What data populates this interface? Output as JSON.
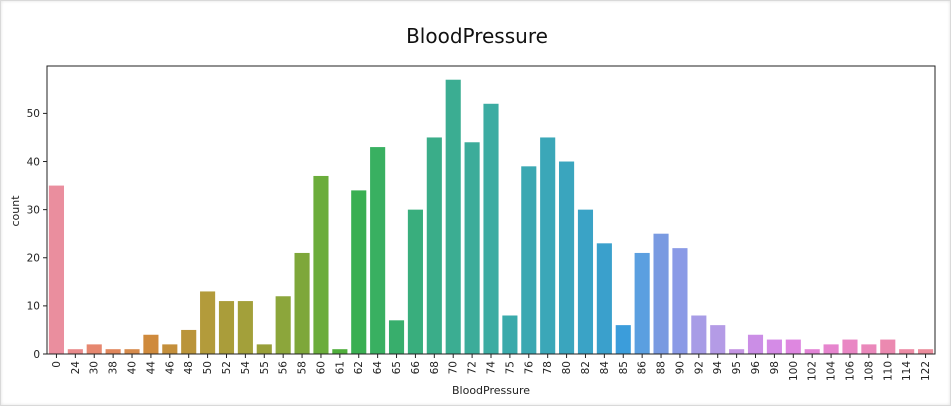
{
  "chart_data": {
    "type": "bar",
    "title": "BloodPressure",
    "xlabel": "BloodPressure",
    "ylabel": "count",
    "ylim": [
      0,
      59.85
    ],
    "yticks": [
      0,
      10,
      20,
      30,
      40,
      50
    ],
    "categories": [
      "0",
      "24",
      "30",
      "38",
      "40",
      "44",
      "46",
      "48",
      "50",
      "52",
      "54",
      "55",
      "56",
      "58",
      "60",
      "61",
      "62",
      "64",
      "65",
      "66",
      "68",
      "70",
      "72",
      "74",
      "75",
      "76",
      "78",
      "80",
      "82",
      "84",
      "85",
      "86",
      "88",
      "90",
      "92",
      "94",
      "95",
      "96",
      "98",
      "100",
      "102",
      "104",
      "106",
      "108",
      "110",
      "114",
      "122"
    ],
    "values": [
      35,
      1,
      2,
      1,
      1,
      4,
      2,
      5,
      13,
      11,
      11,
      2,
      12,
      21,
      37,
      1,
      34,
      43,
      7,
      30,
      45,
      57,
      44,
      52,
      8,
      39,
      45,
      40,
      30,
      23,
      6,
      21,
      25,
      22,
      8,
      6,
      1,
      4,
      3,
      3,
      1,
      2,
      3,
      2,
      3,
      1,
      1
    ],
    "colors": [
      "#ea8e9e",
      "#e98a8b",
      "#e6876f",
      "#e0865b",
      "#d68b4c",
      "#cf8a3c",
      "#c48f3b",
      "#ba943a",
      "#b39b3b",
      "#aa9d3a",
      "#a3a03a",
      "#989f38",
      "#8ca63b",
      "#7ea73a",
      "#6bad3b",
      "#4fae3b",
      "#3aaf52",
      "#39b061",
      "#38ae6c",
      "#39ae7d",
      "#3aad89",
      "#3bad92",
      "#3cac9a",
      "#3caca2",
      "#3aaaab",
      "#3ba8b2",
      "#3ba7b8",
      "#3aa5be",
      "#3aa3c6",
      "#3aa0cc",
      "#3b9ddb",
      "#5b9fe0",
      "#799ae1",
      "#8a9ae6",
      "#a79ce6",
      "#b49be6",
      "#c495e3",
      "#cb8ee6",
      "#d48be6",
      "#de87e0",
      "#e284d6",
      "#e685ce",
      "#e987c4",
      "#ea88bb",
      "#eb89b0",
      "#ec8ba5",
      "#eb8c9c"
    ],
    "grid": false,
    "legend": "none"
  }
}
